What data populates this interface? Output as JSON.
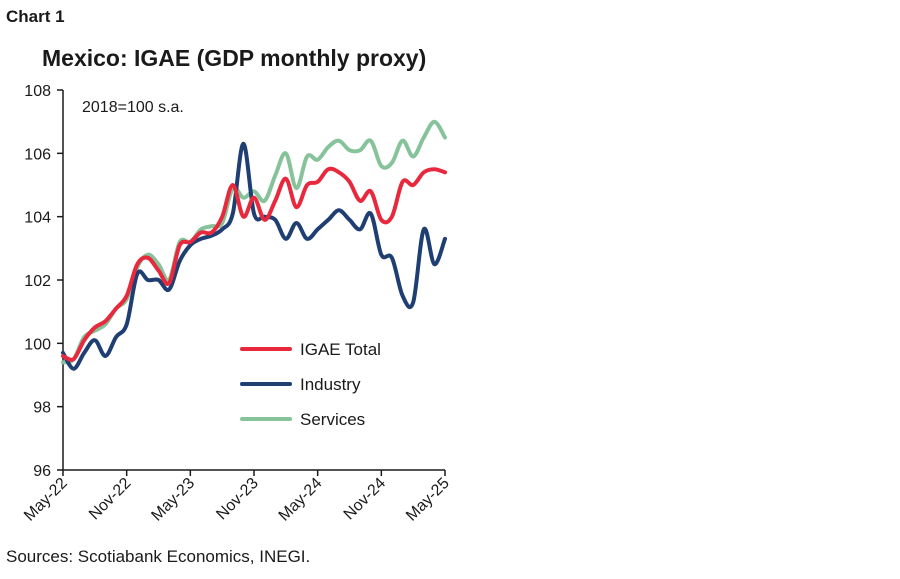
{
  "header": {
    "chart_label": "Chart 1",
    "title": "Mexico: IGAE (GDP monthly proxy)"
  },
  "footer": {
    "source": "Sources: Scotiabank Economics, INEGI."
  },
  "chart_data": {
    "type": "line",
    "title": "Mexico: IGAE (GDP monthly proxy)",
    "annotation": "2018=100 s.a.",
    "ylim": [
      96,
      108
    ],
    "yticks": [
      96,
      98,
      100,
      102,
      104,
      106,
      108
    ],
    "xticks": [
      "May-22",
      "Nov-22",
      "May-23",
      "Nov-23",
      "May-24",
      "Nov-24",
      "May-25"
    ],
    "x": [
      "May-22",
      "Jun-22",
      "Jul-22",
      "Aug-22",
      "Sep-22",
      "Oct-22",
      "Nov-22",
      "Dec-22",
      "Jan-23",
      "Feb-23",
      "Mar-23",
      "Apr-23",
      "May-23",
      "Jun-23",
      "Jul-23",
      "Aug-23",
      "Sep-23",
      "Oct-23",
      "Nov-23",
      "Dec-23",
      "Jan-24",
      "Feb-24",
      "Mar-24",
      "Apr-24",
      "May-24",
      "Jun-24",
      "Jul-24",
      "Aug-24",
      "Sep-24",
      "Oct-24",
      "Nov-24",
      "Dec-24",
      "Jan-25",
      "Feb-25",
      "Mar-25",
      "Apr-25",
      "May-25"
    ],
    "legend_position": "center-right",
    "grid": false,
    "series": [
      {
        "name": "IGAE Total",
        "color": "#e8283c",
        "values": [
          99.6,
          99.5,
          100.1,
          100.5,
          100.7,
          101.1,
          101.5,
          102.5,
          102.7,
          102.3,
          101.9,
          103.1,
          103.2,
          103.5,
          103.5,
          104.0,
          105.0,
          104.0,
          104.6,
          103.9,
          104.5,
          105.2,
          104.3,
          105.0,
          105.1,
          105.5,
          105.4,
          105.1,
          104.5,
          104.8,
          103.9,
          104.0,
          105.1,
          105.0,
          105.4,
          105.5,
          105.4
        ]
      },
      {
        "name": "Industry",
        "color": "#1f3f73",
        "values": [
          99.7,
          99.2,
          99.7,
          100.1,
          99.6,
          100.2,
          100.6,
          102.2,
          102.0,
          102.0,
          101.7,
          102.6,
          103.1,
          103.3,
          103.4,
          103.6,
          104.1,
          106.3,
          104.1,
          104.0,
          103.9,
          103.3,
          103.8,
          103.3,
          103.6,
          103.9,
          104.2,
          103.9,
          103.6,
          104.1,
          102.8,
          102.7,
          101.5,
          101.3,
          103.6,
          102.5,
          103.3
        ]
      },
      {
        "name": "Services",
        "color": "#86c39a",
        "values": [
          99.4,
          99.5,
          100.2,
          100.4,
          100.6,
          101.1,
          101.4,
          102.4,
          102.8,
          102.5,
          102.0,
          103.2,
          103.2,
          103.6,
          103.7,
          103.8,
          104.9,
          104.6,
          104.8,
          104.5,
          105.3,
          106.0,
          104.9,
          105.9,
          105.8,
          106.2,
          106.4,
          106.1,
          106.1,
          106.4,
          105.6,
          105.7,
          106.4,
          105.9,
          106.5,
          107.0,
          106.5
        ]
      }
    ]
  }
}
